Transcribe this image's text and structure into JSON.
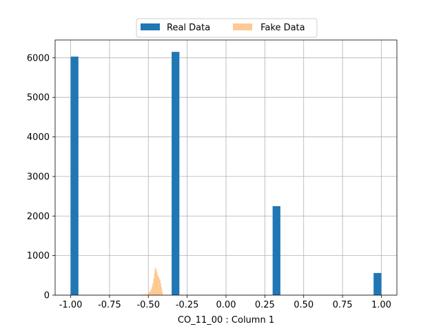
{
  "chart_data": {
    "type": "bar",
    "xlabel": "CO_11_00 : Column 1",
    "ylabel": "",
    "xlim": [
      -1.1,
      1.1
    ],
    "ylim": [
      0,
      6450
    ],
    "xticks": [
      "-1.00",
      "-0.75",
      "-0.50",
      "-0.25",
      "0.00",
      "0.25",
      "0.50",
      "0.75",
      "1.00"
    ],
    "xtick_values": [
      -1.0,
      -0.75,
      -0.5,
      -0.25,
      0.0,
      0.25,
      0.5,
      0.75,
      1.0
    ],
    "yticks": [
      "0",
      "1000",
      "2000",
      "3000",
      "4000",
      "5000",
      "6000"
    ],
    "ytick_values": [
      0,
      1000,
      2000,
      3000,
      4000,
      5000,
      6000
    ],
    "grid": true,
    "legend_position": "top-center",
    "series": [
      {
        "name": "Real Data",
        "color": "#1f77b4",
        "bar_width": 0.05,
        "bars": [
          {
            "x": -0.975,
            "value": 6030
          },
          {
            "x": -0.325,
            "value": 6150
          },
          {
            "x": 0.325,
            "value": 2250
          },
          {
            "x": 0.975,
            "value": 560
          }
        ]
      },
      {
        "name": " Fake Data",
        "color": "#ffbb78",
        "alpha": 0.8,
        "bar_width": 0.0056,
        "bars": [
          {
            "x": -0.6,
            "value": 2
          },
          {
            "x": -0.59,
            "value": 3
          },
          {
            "x": -0.58,
            "value": 4
          },
          {
            "x": -0.57,
            "value": 6
          },
          {
            "x": -0.56,
            "value": 8
          },
          {
            "x": -0.55,
            "value": 12
          },
          {
            "x": -0.54,
            "value": 16
          },
          {
            "x": -0.53,
            "value": 22
          },
          {
            "x": -0.52,
            "value": 30
          },
          {
            "x": -0.51,
            "value": 40
          },
          {
            "x": -0.5,
            "value": 55
          },
          {
            "x": -0.495,
            "value": 70
          },
          {
            "x": -0.49,
            "value": 90
          },
          {
            "x": -0.485,
            "value": 120
          },
          {
            "x": -0.48,
            "value": 160
          },
          {
            "x": -0.475,
            "value": 220
          },
          {
            "x": -0.47,
            "value": 310
          },
          {
            "x": -0.465,
            "value": 420
          },
          {
            "x": -0.46,
            "value": 560
          },
          {
            "x": -0.455,
            "value": 690
          },
          {
            "x": -0.45,
            "value": 660
          },
          {
            "x": -0.445,
            "value": 600
          },
          {
            "x": -0.44,
            "value": 520
          },
          {
            "x": -0.435,
            "value": 470
          },
          {
            "x": -0.43,
            "value": 430
          },
          {
            "x": -0.425,
            "value": 380
          },
          {
            "x": -0.42,
            "value": 300
          },
          {
            "x": -0.415,
            "value": 200
          },
          {
            "x": -0.41,
            "value": 90
          }
        ]
      }
    ]
  }
}
